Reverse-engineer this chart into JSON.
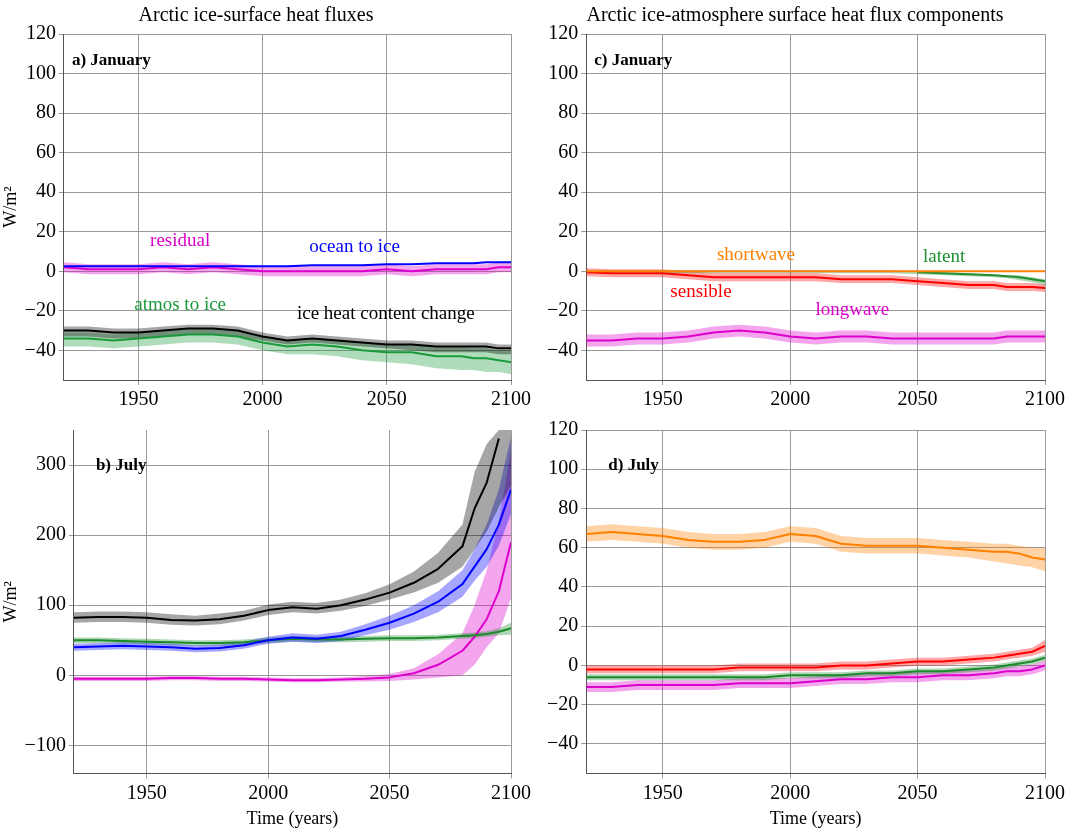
{
  "chart_data": [
    {
      "type": "line",
      "title": "Arctic ice-surface heat fluxes",
      "ylabel": "W/m²",
      "annotations": [
        "a) January"
      ],
      "grid": true,
      "legend": false,
      "x": [
        1920,
        1930,
        1940,
        1950,
        1960,
        1970,
        1980,
        1990,
        2000,
        2010,
        2020,
        2030,
        2040,
        2050,
        2060,
        2070,
        2080,
        2085,
        2090,
        2095,
        2100
      ],
      "xlim": [
        1920,
        2100
      ],
      "xticks": [
        1950,
        2000,
        2050,
        2100
      ],
      "ylim": [
        -55,
        120
      ],
      "yticks": [
        -40,
        -20,
        0,
        20,
        40,
        60,
        80,
        100,
        120
      ],
      "series": [
        {
          "name": "ice heat content change",
          "color": "#000000",
          "values": [
            -30,
            -30,
            -31,
            -31,
            -30,
            -29,
            -29,
            -30,
            -33,
            -35,
            -34,
            -35,
            -36,
            -37,
            -37,
            -38,
            -38,
            -38,
            -38,
            -39,
            -39
          ],
          "lower": [
            -33,
            -33,
            -34,
            -34,
            -33,
            -32,
            -32,
            -33,
            -35,
            -37,
            -36,
            -37,
            -38,
            -39,
            -40,
            -41,
            -41,
            -41,
            -41,
            -42,
            -42
          ],
          "upper": [
            -28,
            -28,
            -29,
            -29,
            -28,
            -27,
            -27,
            -28,
            -31,
            -33,
            -32,
            -33,
            -34,
            -35,
            -35,
            -36,
            -36,
            -36,
            -36,
            -37,
            -37
          ]
        },
        {
          "name": "atmos to ice",
          "color": "#1a9a3a",
          "values": [
            -34,
            -34,
            -35,
            -34,
            -33,
            -32,
            -32,
            -33,
            -36,
            -38,
            -37,
            -38,
            -40,
            -41,
            -41,
            -43,
            -43,
            -44,
            -44,
            -45,
            -46
          ],
          "lower": [
            -38,
            -38,
            -39,
            -38,
            -37,
            -36,
            -36,
            -37,
            -40,
            -42,
            -42,
            -43,
            -45,
            -46,
            -47,
            -49,
            -50,
            -50,
            -51,
            -51,
            -52
          ],
          "upper": [
            -31,
            -31,
            -32,
            -31,
            -30,
            -29,
            -29,
            -30,
            -33,
            -35,
            -34,
            -35,
            -36,
            -37,
            -37,
            -38,
            -38,
            -39,
            -39,
            -40,
            -40
          ]
        },
        {
          "name": "ocean to ice",
          "color": "#0000ff",
          "values": [
            2.5,
            2.5,
            2.5,
            2.5,
            2.5,
            2.5,
            2.5,
            2.5,
            2.5,
            2.5,
            3,
            3,
            3,
            3.5,
            3.5,
            4,
            4,
            4,
            4.5,
            4.5,
            4.5
          ]
        },
        {
          "name": "residual",
          "color": "#dd00cc",
          "values": [
            2,
            1,
            1,
            1,
            2,
            1,
            2,
            1,
            0,
            0,
            0,
            0,
            0,
            1,
            0,
            1,
            1,
            1,
            1,
            2,
            2
          ],
          "lower": [
            -0.5,
            -1.5,
            -1.5,
            -1.5,
            -0.5,
            -1.5,
            -0.5,
            -1.5,
            -2.5,
            -2.5,
            -2.5,
            -2.5,
            -2.5,
            -1.5,
            -2.5,
            -1.5,
            -1.5,
            -1.5,
            -1.5,
            -0.5,
            -0.5
          ],
          "upper": [
            4.5,
            3.5,
            3.5,
            3.5,
            4.5,
            3.5,
            4.5,
            3.5,
            2.5,
            2.5,
            2.5,
            2.5,
            2.5,
            3.5,
            2.5,
            3.5,
            3.5,
            3.5,
            3.5,
            4.5,
            4.5
          ]
        }
      ]
    },
    {
      "type": "line",
      "title": "Arctic ice-atmosphere surface heat flux components",
      "annotations": [
        "c) January"
      ],
      "grid": true,
      "legend": false,
      "x": [
        1920,
        1930,
        1940,
        1950,
        1960,
        1970,
        1980,
        1990,
        2000,
        2010,
        2020,
        2030,
        2040,
        2050,
        2060,
        2070,
        2080,
        2085,
        2090,
        2095,
        2100
      ],
      "xlim": [
        1920,
        2100
      ],
      "xticks": [
        1950,
        2000,
        2050,
        2100
      ],
      "ylim": [
        -55,
        120
      ],
      "yticks": [
        -40,
        -20,
        0,
        20,
        40,
        60,
        80,
        100,
        120
      ],
      "series": [
        {
          "name": "shortwave",
          "color": "#ff8000",
          "values": [
            0,
            0,
            0,
            0,
            0,
            0,
            0,
            0,
            0,
            0,
            0,
            0,
            0,
            0,
            0,
            0,
            0,
            0,
            0,
            0,
            0
          ]
        },
        {
          "name": "latent",
          "color": "#1f8f2f",
          "values": [
            null,
            null,
            null,
            null,
            null,
            null,
            null,
            null,
            null,
            null,
            null,
            null,
            null,
            -0.5,
            -1,
            -1.5,
            -2,
            -2.5,
            -3,
            -4,
            -5
          ],
          "lower": [
            -1,
            -1,
            -1,
            -1,
            -1,
            -1,
            -1,
            -1,
            -1,
            -1,
            -1,
            -1,
            -1,
            -1.5,
            -2,
            -2.5,
            -3,
            -3.5,
            -4.5,
            -5.5,
            -7
          ],
          "upper": [
            0.5,
            0.5,
            0.5,
            0.5,
            0.5,
            0.5,
            0.5,
            0.5,
            0.5,
            0.5,
            0.5,
            0.5,
            0.5,
            0,
            -0.5,
            -1,
            -1.5,
            -2,
            -2,
            -3,
            -4
          ]
        },
        {
          "name": "sensible",
          "color": "#ff0000",
          "values": [
            -0.5,
            -1,
            -1,
            -1,
            -2,
            -3,
            -3,
            -3,
            -3,
            -3,
            -4,
            -4,
            -4,
            -5,
            -6,
            -7,
            -7,
            -8,
            -8,
            -8,
            -8.5
          ],
          "lower": [
            -2.5,
            -3,
            -3,
            -3,
            -4,
            -5,
            -5,
            -5,
            -5,
            -5,
            -6,
            -6,
            -6,
            -7,
            -8,
            -9,
            -9,
            -10,
            -10,
            -10,
            -10.5
          ],
          "upper": [
            1.5,
            1,
            1,
            1,
            0,
            -1,
            -1,
            -1,
            -1,
            -1,
            -2,
            -2,
            -2,
            -3,
            -4,
            -5,
            -5,
            -6,
            -6,
            -6,
            -6.5
          ]
        },
        {
          "name": "longwave",
          "color": "#dd00cc",
          "values": [
            -35,
            -35,
            -34,
            -34,
            -33,
            -31,
            -30,
            -31,
            -33,
            -34,
            -33,
            -33,
            -34,
            -34,
            -34,
            -34,
            -34,
            -33,
            -33,
            -33,
            -33
          ],
          "lower": [
            -38,
            -38,
            -37,
            -37,
            -36,
            -34,
            -33,
            -34,
            -36,
            -37,
            -36,
            -36,
            -37,
            -37,
            -37,
            -37,
            -37,
            -36,
            -36,
            -36,
            -36
          ],
          "upper": [
            -32,
            -32,
            -31,
            -31,
            -30,
            -28,
            -27,
            -28,
            -30,
            -31,
            -30,
            -30,
            -31,
            -31,
            -31,
            -31,
            -31,
            -30,
            -30,
            -30,
            -30
          ]
        }
      ]
    },
    {
      "type": "line",
      "xlabel": "Time (years)",
      "ylabel": "W/m²",
      "annotations": [
        "b) July"
      ],
      "grid": true,
      "legend": false,
      "x": [
        1920,
        1930,
        1940,
        1950,
        1960,
        1970,
        1980,
        1990,
        2000,
        2010,
        2020,
        2030,
        2040,
        2050,
        2060,
        2070,
        2080,
        2085,
        2090,
        2095,
        2100
      ],
      "xlim": [
        1920,
        2100
      ],
      "xticks": [
        1950,
        2000,
        2050,
        2100
      ],
      "ylim": [
        -140,
        350
      ],
      "yticks": [
        -100,
        0,
        100,
        200,
        300
      ],
      "series": [
        {
          "color": "#000000",
          "values": [
            82,
            83,
            83,
            82,
            79,
            78,
            80,
            85,
            93,
            97,
            95,
            100,
            108,
            118,
            132,
            152,
            184,
            238,
            275,
            338,
            null
          ],
          "lower": [
            75,
            76,
            76,
            75,
            72,
            71,
            73,
            78,
            86,
            90,
            88,
            92,
            99,
            108,
            118,
            132,
            155,
            180,
            205,
            240,
            270
          ],
          "upper": [
            90,
            91,
            91,
            90,
            87,
            85,
            88,
            92,
            101,
            105,
            103,
            108,
            117,
            130,
            148,
            175,
            215,
            290,
            330,
            350,
            350
          ]
        },
        {
          "color": "#0000ff",
          "values": [
            40,
            41,
            42,
            41,
            40,
            38,
            39,
            43,
            50,
            54,
            52,
            56,
            65,
            75,
            88,
            105,
            130,
            155,
            180,
            215,
            265
          ],
          "lower": [
            35,
            36,
            37,
            36,
            35,
            33,
            34,
            38,
            45,
            48,
            46,
            49,
            57,
            65,
            76,
            90,
            112,
            135,
            155,
            185,
            230
          ],
          "upper": [
            45,
            46,
            47,
            46,
            45,
            43,
            44,
            48,
            55,
            60,
            58,
            62,
            73,
            85,
            100,
            120,
            150,
            180,
            215,
            265,
            340
          ]
        },
        {
          "color": "#1a8a2a",
          "values": [
            50,
            50,
            49,
            48,
            47,
            46,
            46,
            47,
            50,
            52,
            51,
            51,
            52,
            53,
            53,
            54,
            56,
            57,
            59,
            62,
            67
          ],
          "lower": [
            46,
            46,
            45,
            44,
            43,
            42,
            42,
            43,
            46,
            48,
            47,
            47,
            48,
            49,
            49,
            50,
            52,
            53,
            55,
            57,
            58
          ],
          "upper": [
            54,
            54,
            53,
            52,
            51,
            50,
            50,
            51,
            54,
            56,
            55,
            55,
            56,
            57,
            57,
            58,
            60,
            61,
            63,
            67,
            75
          ]
        },
        {
          "color": "#dd00cc",
          "values": [
            -5,
            -5,
            -5,
            -5,
            -4,
            -4,
            -5,
            -5,
            -6,
            -7,
            -7,
            -6,
            -5,
            -3,
            3,
            15,
            35,
            55,
            80,
            120,
            190
          ],
          "lower": [
            -8,
            -8,
            -8,
            -8,
            -7,
            -7,
            -8,
            -8,
            -9,
            -10,
            -10,
            -9,
            -9,
            -8,
            -6,
            -3,
            0,
            15,
            40,
            60,
            110
          ],
          "upper": [
            -2,
            -2,
            -2,
            -2,
            -1,
            -1,
            -2,
            -2,
            -3,
            -4,
            -4,
            -3,
            -1,
            2,
            10,
            30,
            60,
            100,
            150,
            220,
            320
          ]
        }
      ]
    },
    {
      "type": "line",
      "xlabel": "Time (years)",
      "annotations": [
        "d) July"
      ],
      "grid": true,
      "legend": false,
      "x": [
        1920,
        1930,
        1940,
        1950,
        1960,
        1970,
        1980,
        1990,
        2000,
        2010,
        2020,
        2030,
        2040,
        2050,
        2060,
        2070,
        2080,
        2085,
        2090,
        2095,
        2100
      ],
      "xlim": [
        1920,
        2100
      ],
      "xticks": [
        1950,
        2000,
        2050,
        2100
      ],
      "ylim": [
        -55,
        120
      ],
      "yticks": [
        -40,
        -20,
        0,
        20,
        40,
        60,
        80,
        100,
        120
      ],
      "series": [
        {
          "color": "#ff8000",
          "values": [
            67,
            68,
            67,
            66,
            64,
            63,
            63,
            64,
            67,
            66,
            62,
            61,
            61,
            61,
            60,
            59,
            58,
            58,
            57,
            55,
            54
          ],
          "lower": [
            63,
            64,
            63,
            62,
            60,
            59,
            59,
            60,
            63,
            62,
            58,
            57,
            57,
            57,
            56,
            55,
            53,
            52,
            51,
            50,
            48
          ],
          "upper": [
            71,
            72,
            71,
            70,
            68,
            67,
            67,
            68,
            71,
            70,
            66,
            65,
            65,
            65,
            64,
            63,
            62,
            62,
            61,
            60,
            60
          ]
        },
        {
          "color": "#ff0000",
          "values": [
            -2,
            -2,
            -2,
            -2,
            -2,
            -2,
            -1,
            -1,
            -1,
            -1,
            0,
            0,
            1,
            2,
            2,
            3,
            4,
            5,
            6,
            7,
            10
          ],
          "lower": [
            -4,
            -4,
            -4,
            -4,
            -4,
            -4,
            -3,
            -3,
            -3,
            -3,
            -2,
            -2,
            -1,
            0,
            0,
            1,
            2,
            3,
            4,
            5,
            7
          ],
          "upper": [
            0,
            0,
            0,
            0,
            0,
            0,
            1,
            1,
            1,
            1,
            2,
            2,
            3,
            4,
            4,
            5,
            6,
            7,
            8,
            9,
            13
          ]
        },
        {
          "color": "#1a8a2a",
          "values": [
            -6,
            -6,
            -6,
            -6,
            -6,
            -6,
            -6,
            -6,
            -5,
            -5,
            -5,
            -4,
            -4,
            -3,
            -3,
            -2,
            -1,
            0,
            1,
            2,
            4
          ],
          "lower": [
            -7.5,
            -7.5,
            -7.5,
            -7.5,
            -7.5,
            -7.5,
            -7.5,
            -7.5,
            -6.5,
            -6.5,
            -6.5,
            -5.5,
            -5.5,
            -4.5,
            -4.5,
            -3.5,
            -2.5,
            -1.5,
            -0.5,
            0.5,
            2.5
          ],
          "upper": [
            -4.5,
            -4.5,
            -4.5,
            -4.5,
            -4.5,
            -4.5,
            -4.5,
            -4.5,
            -3.5,
            -3.5,
            -3.5,
            -2.5,
            -2.5,
            -1.5,
            -1.5,
            -0.5,
            0.5,
            1.5,
            2.5,
            3.5,
            5.5
          ]
        },
        {
          "color": "#dd00cc",
          "values": [
            -11,
            -11,
            -10,
            -10,
            -10,
            -10,
            -9,
            -9,
            -9,
            -8,
            -7,
            -7,
            -6,
            -6,
            -5,
            -5,
            -4,
            -3,
            -3,
            -2,
            0
          ],
          "lower": [
            -13.5,
            -13.5,
            -12.5,
            -12.5,
            -12.5,
            -12.5,
            -11.5,
            -11.5,
            -11.5,
            -10.5,
            -9.5,
            -9.5,
            -8.5,
            -8.5,
            -7.5,
            -7.5,
            -6.5,
            -5.5,
            -5.5,
            -4.5,
            -2.5
          ],
          "upper": [
            -8.5,
            -8.5,
            -7.5,
            -7.5,
            -7.5,
            -7.5,
            -6.5,
            -6.5,
            -6.5,
            -5.5,
            -4.5,
            -4.5,
            -3.5,
            -3.5,
            -2.5,
            -2.5,
            -1.5,
            -0.5,
            -0.5,
            0.5,
            2.5
          ]
        }
      ]
    }
  ]
}
